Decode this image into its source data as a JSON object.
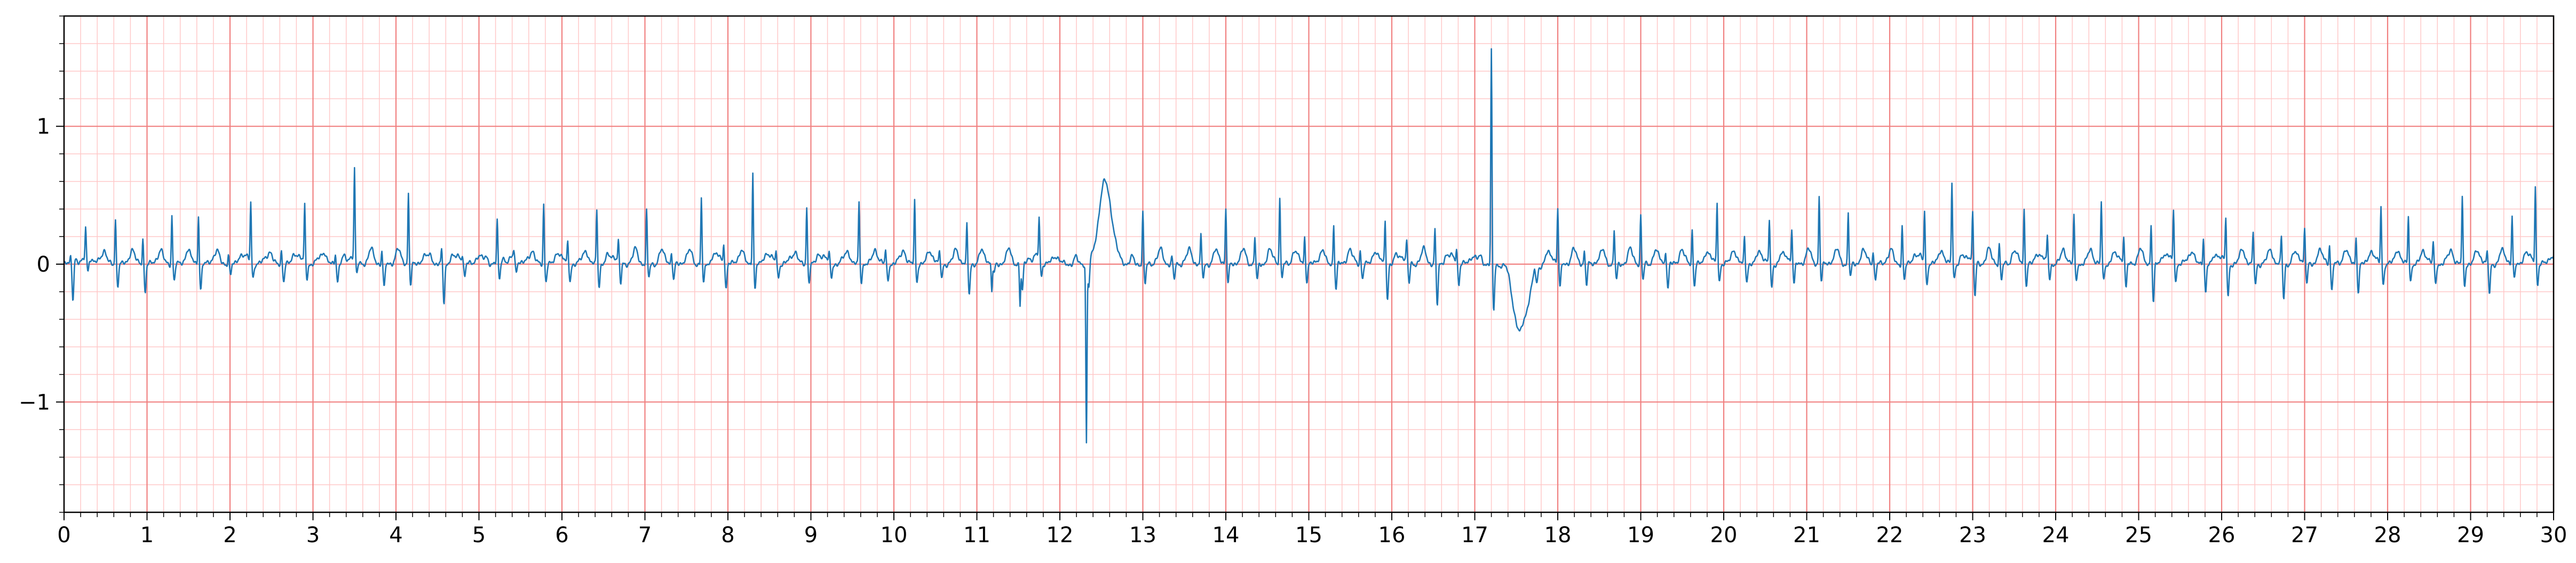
{
  "chart_data": {
    "type": "line",
    "title": "",
    "xlabel": "",
    "ylabel": "",
    "xlim": [
      0,
      30
    ],
    "ylim": [
      -1.8,
      1.8
    ],
    "x_ticks": [
      "0",
      "1",
      "2",
      "3",
      "4",
      "5",
      "6",
      "7",
      "8",
      "9",
      "10",
      "11",
      "12",
      "13",
      "14",
      "15",
      "16",
      "17",
      "18",
      "19",
      "20",
      "21",
      "22",
      "23",
      "24",
      "25",
      "26",
      "27",
      "28",
      "29",
      "30"
    ],
    "y_ticks": [
      "−1",
      "0",
      "1"
    ],
    "grid": {
      "major": true,
      "minor": true,
      "x_major_step": 1.0,
      "x_minor_step": 0.2,
      "y_major_step": 1.0,
      "y_minor_step": 0.2,
      "major_color": "#f08080",
      "minor_color": "#ffc8c8"
    },
    "line_color": "#1f77b4",
    "series": [
      {
        "beats": [
          0.08,
          0.26,
          0.62,
          0.95,
          1.3,
          1.62,
          1.98,
          2.25,
          2.62,
          2.9,
          3.27,
          3.5,
          3.83,
          4.15,
          4.55,
          4.8,
          5.22,
          5.42,
          5.78,
          6.07,
          6.42,
          6.68,
          7.02,
          7.32,
          7.68,
          7.95,
          8.3,
          8.58,
          8.95,
          9.22,
          9.58,
          9.9,
          10.25,
          10.55,
          10.88,
          11.18,
          11.52,
          11.75,
          12.32,
          13.0,
          13.35,
          13.7,
          14.0,
          14.35,
          14.65,
          14.95,
          15.3,
          15.62,
          15.92,
          16.18,
          16.52,
          16.78,
          17.2,
          17.72,
          18.0,
          18.32,
          18.68,
          19.0,
          19.3,
          19.62,
          19.92,
          20.25,
          20.55,
          20.82,
          21.15,
          21.5,
          21.8,
          22.15,
          22.42,
          22.75,
          23.0,
          23.32,
          23.62,
          23.9,
          24.22,
          24.55,
          24.82,
          25.15,
          25.42,
          25.78,
          26.05,
          26.38,
          26.72,
          27.0,
          27.3,
          27.62,
          27.92,
          28.25,
          28.55,
          28.9,
          29.2,
          29.5,
          29.78
        ],
        "peaks": [
          0.05,
          0.22,
          0.33,
          0.2,
          0.36,
          0.36,
          0.08,
          0.44,
          0.1,
          0.42,
          0.08,
          0.65,
          0.1,
          0.52,
          0.1,
          0.05,
          0.31,
          0.05,
          0.44,
          0.15,
          0.4,
          0.15,
          0.38,
          0.08,
          0.48,
          0.15,
          0.68,
          0.1,
          0.42,
          0.06,
          0.45,
          0.1,
          0.46,
          0.08,
          0.28,
          -0.2,
          -0.3,
          0.3,
          -1.3,
          0.38,
          0.05,
          0.2,
          0.4,
          0.2,
          0.48,
          0.2,
          0.3,
          0.1,
          0.32,
          0.15,
          0.25,
          0.1,
          1.55,
          0.05,
          0.4,
          0.1,
          0.25,
          0.35,
          0.1,
          0.25,
          0.45,
          0.2,
          0.32,
          0.25,
          0.5,
          0.38,
          0.1,
          0.28,
          0.38,
          0.6,
          0.35,
          0.15,
          0.4,
          0.2,
          0.35,
          0.45,
          0.2,
          0.3,
          0.38,
          0.2,
          0.32,
          0.22,
          0.2,
          0.25,
          0.15,
          0.2,
          0.42,
          0.35,
          0.15,
          0.48,
          0.08,
          0.35,
          0.57
        ],
        "dips": [
          -0.28,
          -0.1,
          -0.15,
          -0.2,
          -0.12,
          -0.18,
          -0.08,
          -0.1,
          -0.12,
          -0.1,
          -0.12,
          -0.1,
          -0.18,
          -0.15,
          -0.28,
          -0.1,
          -0.12,
          -0.1,
          -0.12,
          -0.12,
          -0.15,
          -0.15,
          -0.1,
          -0.12,
          -0.15,
          -0.18,
          -0.18,
          -0.1,
          -0.12,
          -0.1,
          -0.12,
          -0.12,
          -0.12,
          -0.1,
          -0.22,
          -0.08,
          -0.2,
          -0.1,
          -0.2,
          -0.15,
          -0.12,
          -0.1,
          -0.15,
          -0.12,
          -0.1,
          -0.12,
          -0.18,
          -0.1,
          -0.25,
          -0.15,
          -0.3,
          -0.15,
          -0.35,
          -0.1,
          -0.18,
          -0.15,
          -0.12,
          -0.12,
          -0.18,
          -0.15,
          -0.12,
          -0.12,
          -0.18,
          -0.15,
          -0.12,
          -0.1,
          -0.12,
          -0.12,
          -0.15,
          -0.1,
          -0.25,
          -0.12,
          -0.15,
          -0.1,
          -0.12,
          -0.12,
          -0.18,
          -0.28,
          -0.12,
          -0.2,
          -0.25,
          -0.15,
          -0.25,
          -0.15,
          -0.2,
          -0.2,
          -0.15,
          -0.12,
          -0.15,
          -0.15,
          -0.22,
          -0.12,
          -0.15
        ],
        "events": [
          {
            "center": 12.55,
            "amplitude": 0.55,
            "width": 0.08
          },
          {
            "center": 17.55,
            "amplitude": -0.5,
            "width": 0.09
          }
        ]
      }
    ]
  }
}
